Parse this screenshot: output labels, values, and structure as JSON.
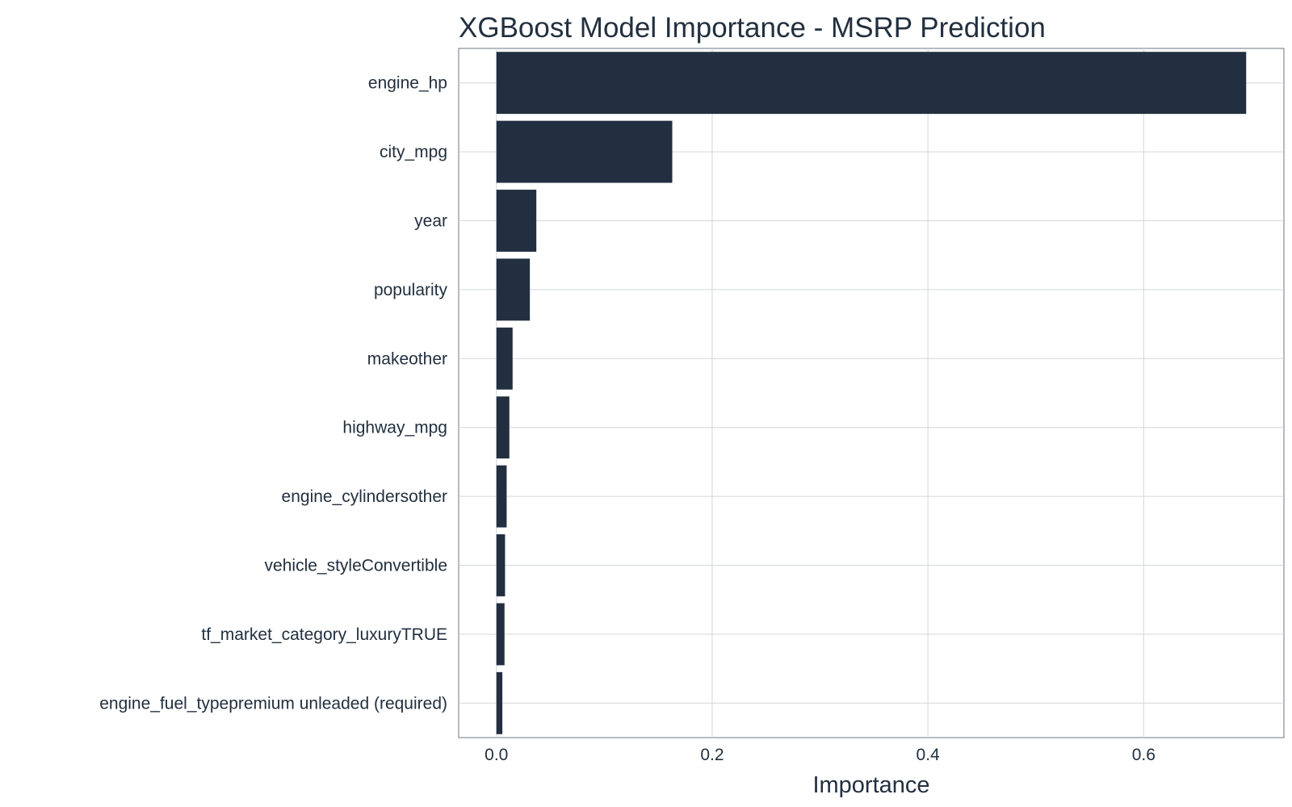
{
  "chart_data": {
    "type": "bar",
    "orientation": "horizontal",
    "title": "XGBoost Model Importance - MSRP Prediction",
    "xlabel": "Importance",
    "ylabel": "",
    "xlim": [
      -0.035,
      0.73
    ],
    "xticks": [
      0.0,
      0.2,
      0.4,
      0.6
    ],
    "xtick_labels": [
      "0.0",
      "0.2",
      "0.4",
      "0.6"
    ],
    "grid": true,
    "legend": "none",
    "bar_color": "#222f40",
    "categories": [
      "engine_hp",
      "city_mpg",
      "year",
      "popularity",
      "makeother",
      "highway_mpg",
      "engine_cylindersother",
      "vehicle_styleConvertible",
      "tf_market_category_luxuryTRUE",
      "engine_fuel_typepremium unleaded (required)"
    ],
    "values": [
      0.695,
      0.163,
      0.037,
      0.031,
      0.015,
      0.012,
      0.0095,
      0.008,
      0.0075,
      0.0055
    ]
  }
}
